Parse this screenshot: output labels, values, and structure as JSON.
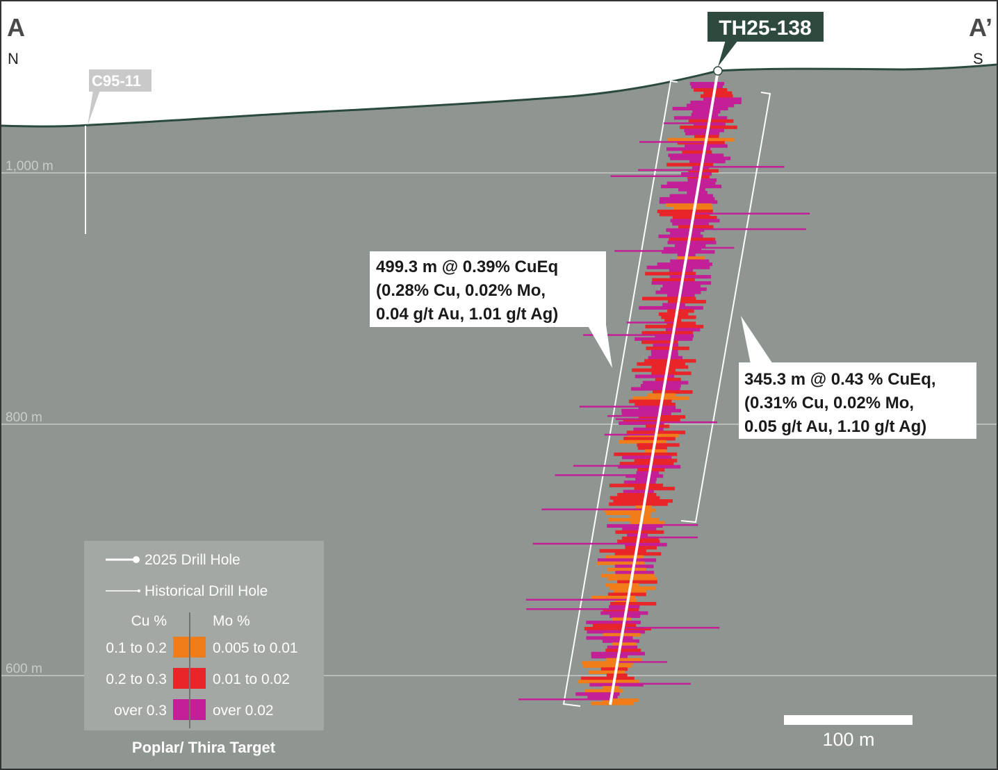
{
  "section": {
    "start_label": "A",
    "end_label": "A’",
    "start_dir": "N",
    "end_dir": "S"
  },
  "elevations": [
    "1,000 m",
    "800 m",
    "600 m"
  ],
  "drill_hole": {
    "name": "TH25-138"
  },
  "historical_hole": {
    "name": "C95-11"
  },
  "intercepts": [
    {
      "lines": [
        "499.3 m @ 0.39% CuEq",
        "(0.28% Cu, 0.02% Mo,",
        "0.04 g/t Au, 1.01 g/t Ag)"
      ]
    },
    {
      "lines": [
        "345.3 m @ 0.43 % CuEq,",
        "(0.31% Cu, 0.02% Mo,",
        "0.05 g/t Au, 1.10 g/t Ag)"
      ]
    }
  ],
  "legend": {
    "drill_2025": "2025 Drill Hole",
    "drill_historical": "Historical Drill Hole",
    "cu_header": "Cu %",
    "mo_header": "Mo %",
    "grades": [
      {
        "cu": "0.1 to 0.2",
        "mo": "0.005 to 0.01",
        "color": "#f07d1a"
      },
      {
        "cu": "0.2 to 0.3",
        "mo": "0.01 to 0.02",
        "color": "#e8262a"
      },
      {
        "cu": "over 0.3",
        "mo": "over 0.02",
        "color": "#c31f96"
      }
    ],
    "title": "Poplar/ Thira Target"
  },
  "scale_bar": {
    "label": "100 m"
  },
  "colors": {
    "ground": "#8f9590",
    "sky": "#ffffff",
    "surface_line": "#2b4a3e",
    "label_box": "#2e4a3f",
    "historical_label_box": "#c9c9c9",
    "legend_box": "#a3a8a4"
  }
}
